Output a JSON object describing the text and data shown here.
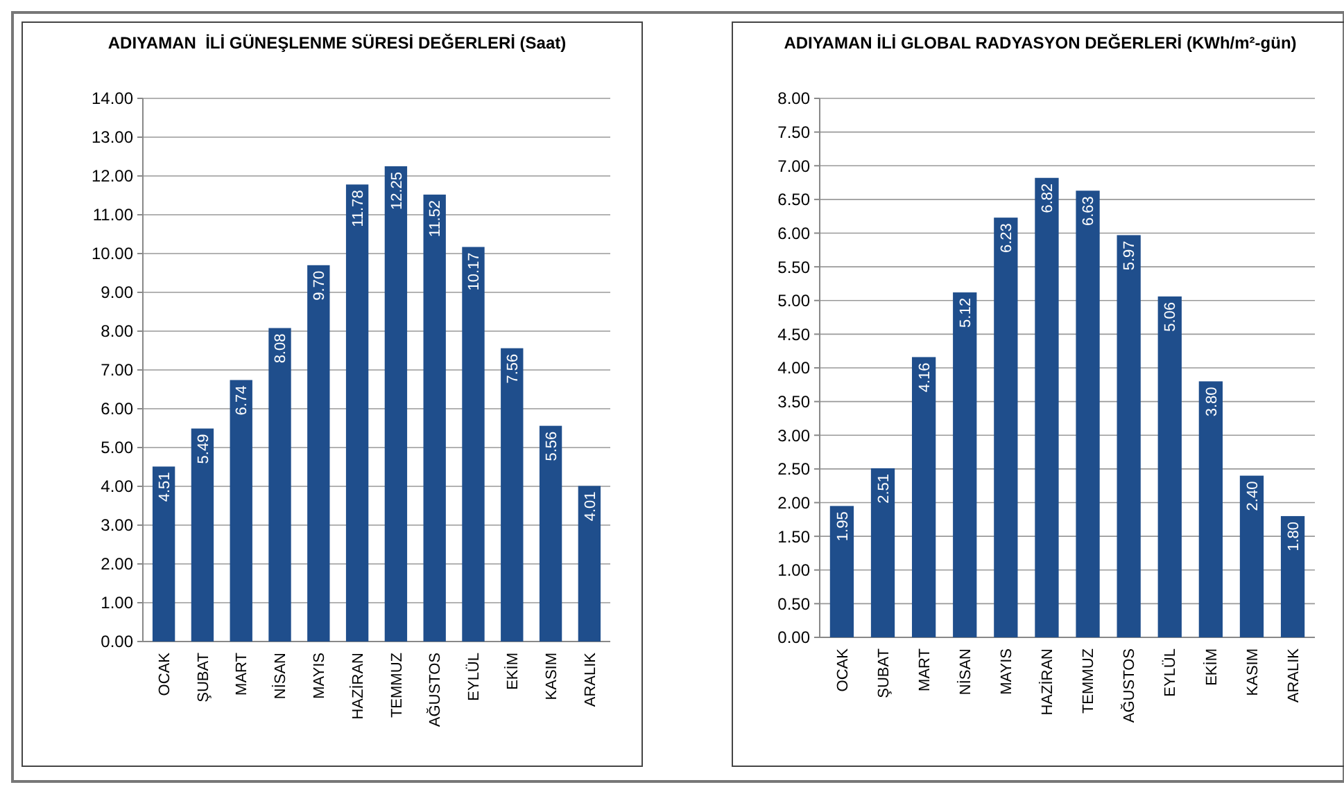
{
  "chart_data": [
    {
      "type": "bar",
      "title": "ADIYAMAN  İLİ GÜNEŞLENME SÜRESİ DEĞERLERİ (Saat)",
      "categories": [
        "OCAK",
        "ŞUBAT",
        "MART",
        "NİSAN",
        "MAYIS",
        "HAZİRAN",
        "TEMMUZ",
        "AĞUSTOS",
        "EYLÜL",
        "EKİM",
        "KASIM",
        "ARALIK"
      ],
      "values": [
        4.51,
        5.49,
        6.74,
        8.08,
        9.7,
        11.78,
        12.25,
        11.52,
        10.17,
        7.56,
        5.56,
        4.01
      ],
      "color": "#1f4e8c",
      "value_labels": [
        "4.51",
        "5.49",
        "6.74",
        "8.08",
        "9.70",
        "11.78",
        "12.25",
        "11.52",
        "10.17",
        "7.56",
        "5.56",
        "4.01"
      ],
      "ylim": [
        0,
        14
      ],
      "yticks": [
        {
          "value": 0,
          "label": "0.00"
        },
        {
          "value": 1,
          "label": "1.00"
        },
        {
          "value": 2,
          "label": "2.00"
        },
        {
          "value": 3,
          "label": "3.00"
        },
        {
          "value": 4,
          "label": "4.00"
        },
        {
          "value": 5,
          "label": "5.00"
        },
        {
          "value": 6,
          "label": "6.00"
        },
        {
          "value": 7,
          "label": "7.00"
        },
        {
          "value": 8,
          "label": "8.00"
        },
        {
          "value": 9,
          "label": "9.00"
        },
        {
          "value": 10,
          "label": "10.00"
        },
        {
          "value": 11,
          "label": "11.00"
        },
        {
          "value": 12,
          "label": "12.00"
        },
        {
          "value": 13,
          "label": "13.00"
        },
        {
          "value": 14,
          "label": "14.00"
        }
      ],
      "grid": "y"
    },
    {
      "type": "bar",
      "title": "ADIYAMAN İLİ GLOBAL RADYASYON DEĞERLERİ (KWh/m²-gün)",
      "categories": [
        "OCAK",
        "ŞUBAT",
        "MART",
        "NİSAN",
        "MAYIS",
        "HAZİRAN",
        "TEMMUZ",
        "AĞUSTOS",
        "EYLÜL",
        "EKİM",
        "KASIM",
        "ARALIK"
      ],
      "values": [
        1.95,
        2.51,
        4.16,
        5.12,
        6.23,
        6.82,
        6.63,
        5.97,
        5.06,
        3.8,
        2.4,
        1.8
      ],
      "color": "#1f4e8c",
      "value_labels": [
        "1.95",
        "2.51",
        "4.16",
        "5.12",
        "6.23",
        "6.82",
        "6.63",
        "5.97",
        "5.06",
        "3.80",
        "2.40",
        "1.80"
      ],
      "ylim": [
        0,
        8
      ],
      "yticks": [
        {
          "value": 0,
          "label": "0.00"
        },
        {
          "value": 0.5,
          "label": "0.50"
        },
        {
          "value": 1,
          "label": "1.00"
        },
        {
          "value": 1.5,
          "label": "1.50"
        },
        {
          "value": 2,
          "label": "2.00"
        },
        {
          "value": 2.5,
          "label": "2.50"
        },
        {
          "value": 3,
          "label": "3.00"
        },
        {
          "value": 3.5,
          "label": "3.50"
        },
        {
          "value": 4,
          "label": "4.00"
        },
        {
          "value": 4.5,
          "label": "4.50"
        },
        {
          "value": 5,
          "label": "5.00"
        },
        {
          "value": 5.5,
          "label": "5.50"
        },
        {
          "value": 6,
          "label": "6.00"
        },
        {
          "value": 6.5,
          "label": "6.50"
        },
        {
          "value": 7,
          "label": "7.00"
        },
        {
          "value": 7.5,
          "label": "7.50"
        },
        {
          "value": 8,
          "label": "8.00"
        }
      ],
      "grid": "y"
    }
  ]
}
